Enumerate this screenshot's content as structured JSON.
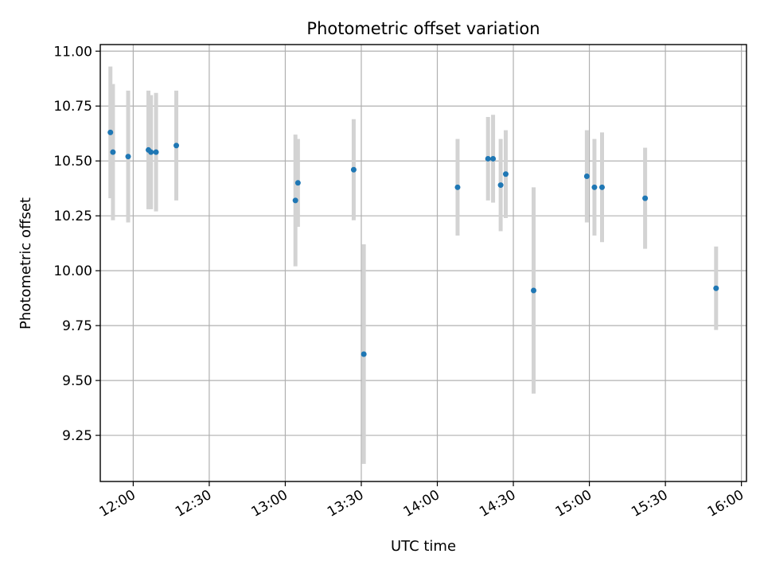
{
  "chart_data": {
    "type": "scatter",
    "title": "Photometric offset variation",
    "xlabel": "UTC time",
    "ylabel": "Photometric offset",
    "x_tick_labels": [
      "12:00",
      "12:30",
      "13:00",
      "13:30",
      "14:00",
      "14:30",
      "15:00",
      "15:30",
      "16:00"
    ],
    "y_tick_labels": [
      "9.25",
      "9.50",
      "9.75",
      "10.00",
      "10.25",
      "10.50",
      "10.75",
      "11.00"
    ],
    "xlim": [
      "11:47",
      "16:02"
    ],
    "ylim": [
      9.04,
      11.03
    ],
    "grid": true,
    "point_color": "#1f77b4",
    "errorbar_color": "#d3d3d3",
    "points": [
      {
        "x": "11:51",
        "y": 10.63,
        "yerr": 0.3
      },
      {
        "x": "11:52",
        "y": 10.54,
        "yerr": 0.31
      },
      {
        "x": "11:58",
        "y": 10.52,
        "yerr": 0.3
      },
      {
        "x": "12:06",
        "y": 10.55,
        "yerr": 0.27
      },
      {
        "x": "12:07",
        "y": 10.54,
        "yerr": 0.26
      },
      {
        "x": "12:09",
        "y": 10.54,
        "yerr": 0.27
      },
      {
        "x": "12:17",
        "y": 10.57,
        "yerr": 0.25
      },
      {
        "x": "13:04",
        "y": 10.32,
        "yerr": 0.3
      },
      {
        "x": "13:05",
        "y": 10.4,
        "yerr": 0.2
      },
      {
        "x": "13:27",
        "y": 10.46,
        "yerr": 0.23
      },
      {
        "x": "13:31",
        "y": 9.62,
        "yerr": 0.5
      },
      {
        "x": "14:08",
        "y": 10.38,
        "yerr": 0.22
      },
      {
        "x": "14:20",
        "y": 10.51,
        "yerr": 0.19
      },
      {
        "x": "14:22",
        "y": 10.51,
        "yerr": 0.2
      },
      {
        "x": "14:25",
        "y": 10.39,
        "yerr": 0.21
      },
      {
        "x": "14:27",
        "y": 10.44,
        "yerr": 0.2
      },
      {
        "x": "14:38",
        "y": 9.91,
        "yerr": 0.47
      },
      {
        "x": "14:59",
        "y": 10.43,
        "yerr": 0.21
      },
      {
        "x": "15:02",
        "y": 10.38,
        "yerr": 0.22
      },
      {
        "x": "15:05",
        "y": 10.38,
        "yerr": 0.25
      },
      {
        "x": "15:22",
        "y": 10.33,
        "yerr": 0.23
      },
      {
        "x": "15:50",
        "y": 9.92,
        "yerr": 0.19
      }
    ]
  }
}
